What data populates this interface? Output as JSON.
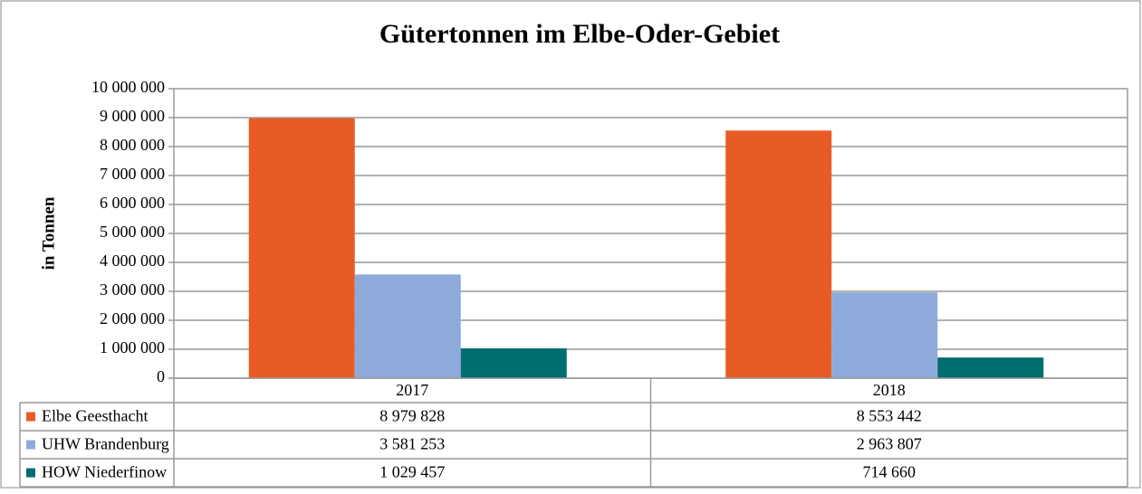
{
  "chart_data": {
    "type": "bar",
    "title": "Gütertonnen im Elbe-Oder-Gebiet",
    "y_label": "in Tonnen",
    "categories": [
      "2017",
      "2018"
    ],
    "series": [
      {
        "name": "Elbe Geesthacht",
        "color": "#e95b25",
        "values": [
          8979828,
          8553442
        ],
        "value_labels": [
          "8 979 828",
          "8 553 442"
        ]
      },
      {
        "name": "UHW Brandenburg",
        "color": "#8eaadb",
        "values": [
          3581253,
          2963807
        ],
        "value_labels": [
          "3 581 253",
          "2 963 807"
        ]
      },
      {
        "name": "HOW Niederfinow",
        "color": "#006d71",
        "values": [
          1029457,
          714660
        ],
        "value_labels": [
          "1 029 457",
          "714 660"
        ]
      }
    ],
    "ylim": [
      0,
      10000000
    ],
    "yticks": [
      0,
      {
        "value": 1000000,
        "label": "1 000 000"
      },
      {
        "value": 2000000,
        "label": "2 000 000"
      },
      {
        "value": 3000000,
        "label": "3 000 000"
      },
      {
        "value": 4000000,
        "label": "4 000 000"
      },
      {
        "value": 5000000,
        "label": "5 000 000"
      },
      {
        "value": 6000000,
        "label": "6 000 000"
      },
      {
        "value": 7000000,
        "label": "7 000 000"
      },
      {
        "value": 8000000,
        "label": "8 000 000"
      },
      {
        "value": 9000000,
        "label": "9 000 000"
      },
      {
        "value": 10000000,
        "label": "10 000 000"
      }
    ],
    "grid": true
  }
}
